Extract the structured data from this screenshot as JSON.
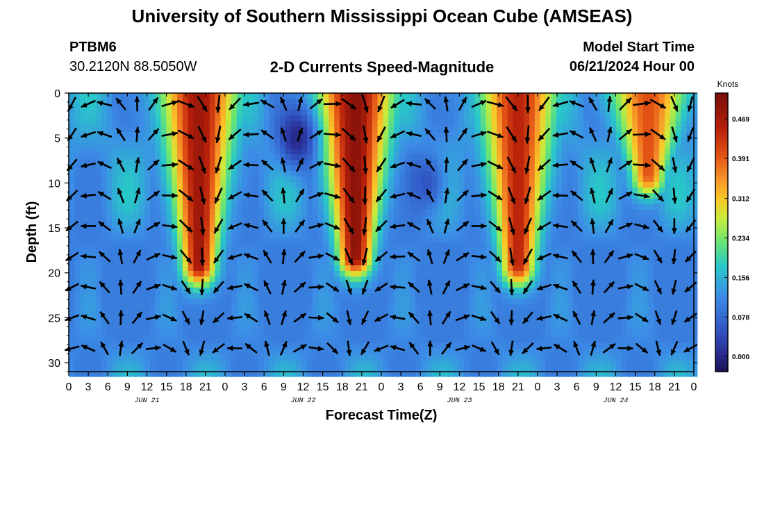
{
  "header": {
    "title": "University of Southern Mississippi Ocean Cube (AMSEAS)",
    "station_id": "PTBM6",
    "station_coords": "30.2120N  88.5050W",
    "plot_title": "2-D Currents Speed-Magnitude",
    "model_start_label": "Model Start Time",
    "model_start_value": "06/21/2024 Hour 00"
  },
  "footer": {
    "title": "University of Southern Mississippi Ocean Cube (AMSEAS)"
  },
  "chart_data": {
    "type": "heatmap",
    "xlabel": "Forecast Time(Z)",
    "ylabel": "Depth (ft)",
    "x_range_hours": [
      0,
      96
    ],
    "ylim": [
      0,
      31
    ],
    "y_ticks": [
      0,
      5,
      10,
      15,
      20,
      25,
      30
    ],
    "x_tick_labels": [
      "0",
      "3",
      "6",
      "9",
      "12",
      "15",
      "18",
      "21",
      "0",
      "3",
      "6",
      "9",
      "12",
      "15",
      "18",
      "21",
      "0",
      "3",
      "6",
      "9",
      "12",
      "15",
      "18",
      "21",
      "0",
      "3",
      "6",
      "9",
      "12",
      "15",
      "18",
      "21",
      "0"
    ],
    "day_labels": [
      {
        "label": "JUN 21",
        "hour": 12
      },
      {
        "label": "JUN 22",
        "hour": 36
      },
      {
        "label": "JUN 23",
        "hour": 60
      },
      {
        "label": "JUN 24",
        "hour": 84
      }
    ],
    "colorbar": {
      "label": "Knots",
      "range": [
        -0.03,
        0.52
      ],
      "ticks": [
        "0.000",
        "0.078",
        "0.156",
        "0.234",
        "0.312",
        "0.391",
        "0.469"
      ],
      "tick_values": [
        0.0,
        0.078,
        0.156,
        0.234,
        0.312,
        0.391,
        0.469
      ]
    },
    "speed_peaks": [
      {
        "hour": 20,
        "surface_knots": 0.48,
        "reaches_depth_ft": 19
      },
      {
        "hour": 44,
        "surface_knots": 0.5,
        "reaches_depth_ft": 18
      },
      {
        "hour": 69,
        "surface_knots": 0.45,
        "reaches_depth_ft": 19
      },
      {
        "hour": 89,
        "surface_knots": 0.4,
        "reaches_depth_ft": 9
      }
    ],
    "speed_minima": [
      {
        "hour": 35,
        "depth_ft": 5,
        "knots": 0.0
      },
      {
        "hour": 55,
        "depth_ft": 10,
        "knots": 0.05
      }
    ]
  }
}
